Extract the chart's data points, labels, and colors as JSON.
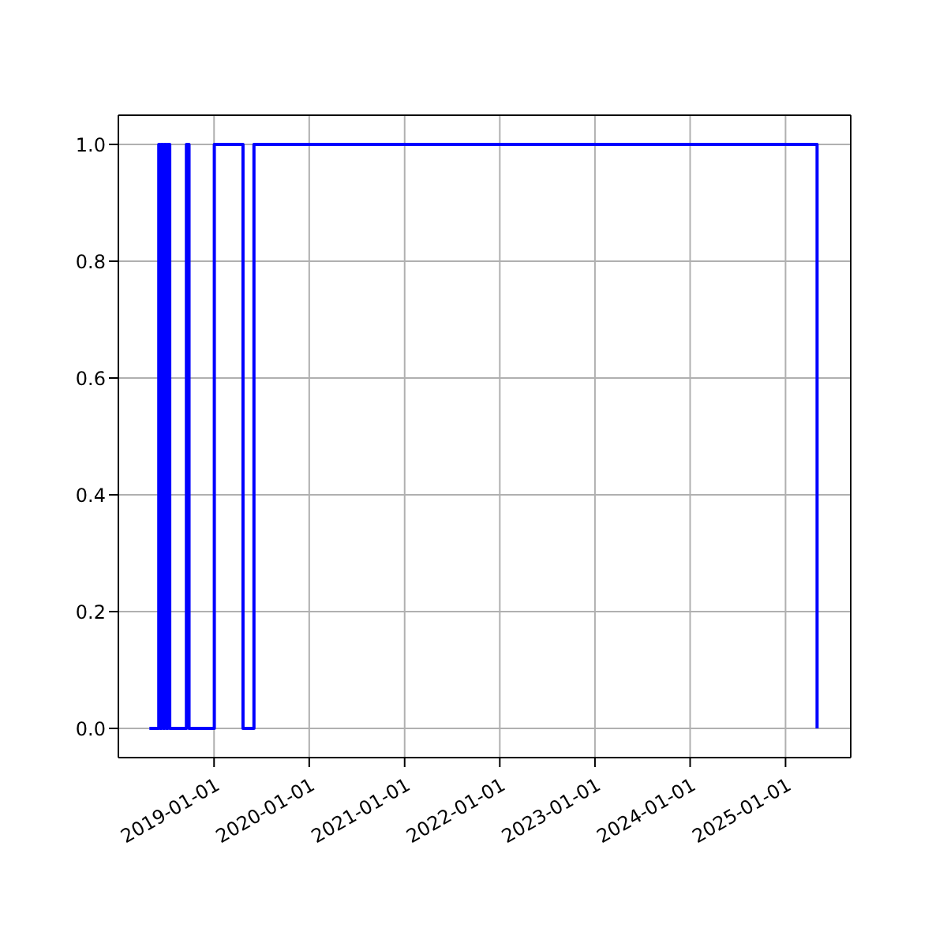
{
  "chart_data": {
    "type": "step",
    "x": [
      "2018-04-28",
      "2018-06-03",
      "2018-06-08",
      "2018-06-14",
      "2018-06-20",
      "2018-06-26",
      "2018-07-02",
      "2018-07-08",
      "2018-07-15",
      "2018-09-17",
      "2018-09-27",
      "2019-01-02",
      "2019-04-22",
      "2019-06-03",
      "2025-05-02"
    ],
    "series": [
      {
        "color": "#0000ff",
        "values": [
          0,
          1,
          0,
          1,
          0,
          1,
          0,
          1,
          0,
          1,
          0,
          1,
          0,
          1,
          0
        ]
      }
    ],
    "xlim": [
      "2017-12-30",
      "2025-09-08"
    ],
    "xticks": [
      "2019-01-01",
      "2020-01-01",
      "2021-01-01",
      "2022-01-01",
      "2023-01-01",
      "2024-01-01",
      "2025-01-01"
    ],
    "ylim": [
      -0.05,
      1.05
    ],
    "yticks": [
      {
        "value": 0,
        "label": "0.0"
      },
      {
        "value": 0.2,
        "label": "0.2"
      },
      {
        "value": 0.4,
        "label": "0.4"
      },
      {
        "value": 0.6,
        "label": "0.6"
      },
      {
        "value": 0.8,
        "label": "0.8"
      },
      {
        "value": 1,
        "label": "1.0"
      }
    ],
    "grid": true,
    "legend": false,
    "marker": "none",
    "line_style": "solid"
  }
}
